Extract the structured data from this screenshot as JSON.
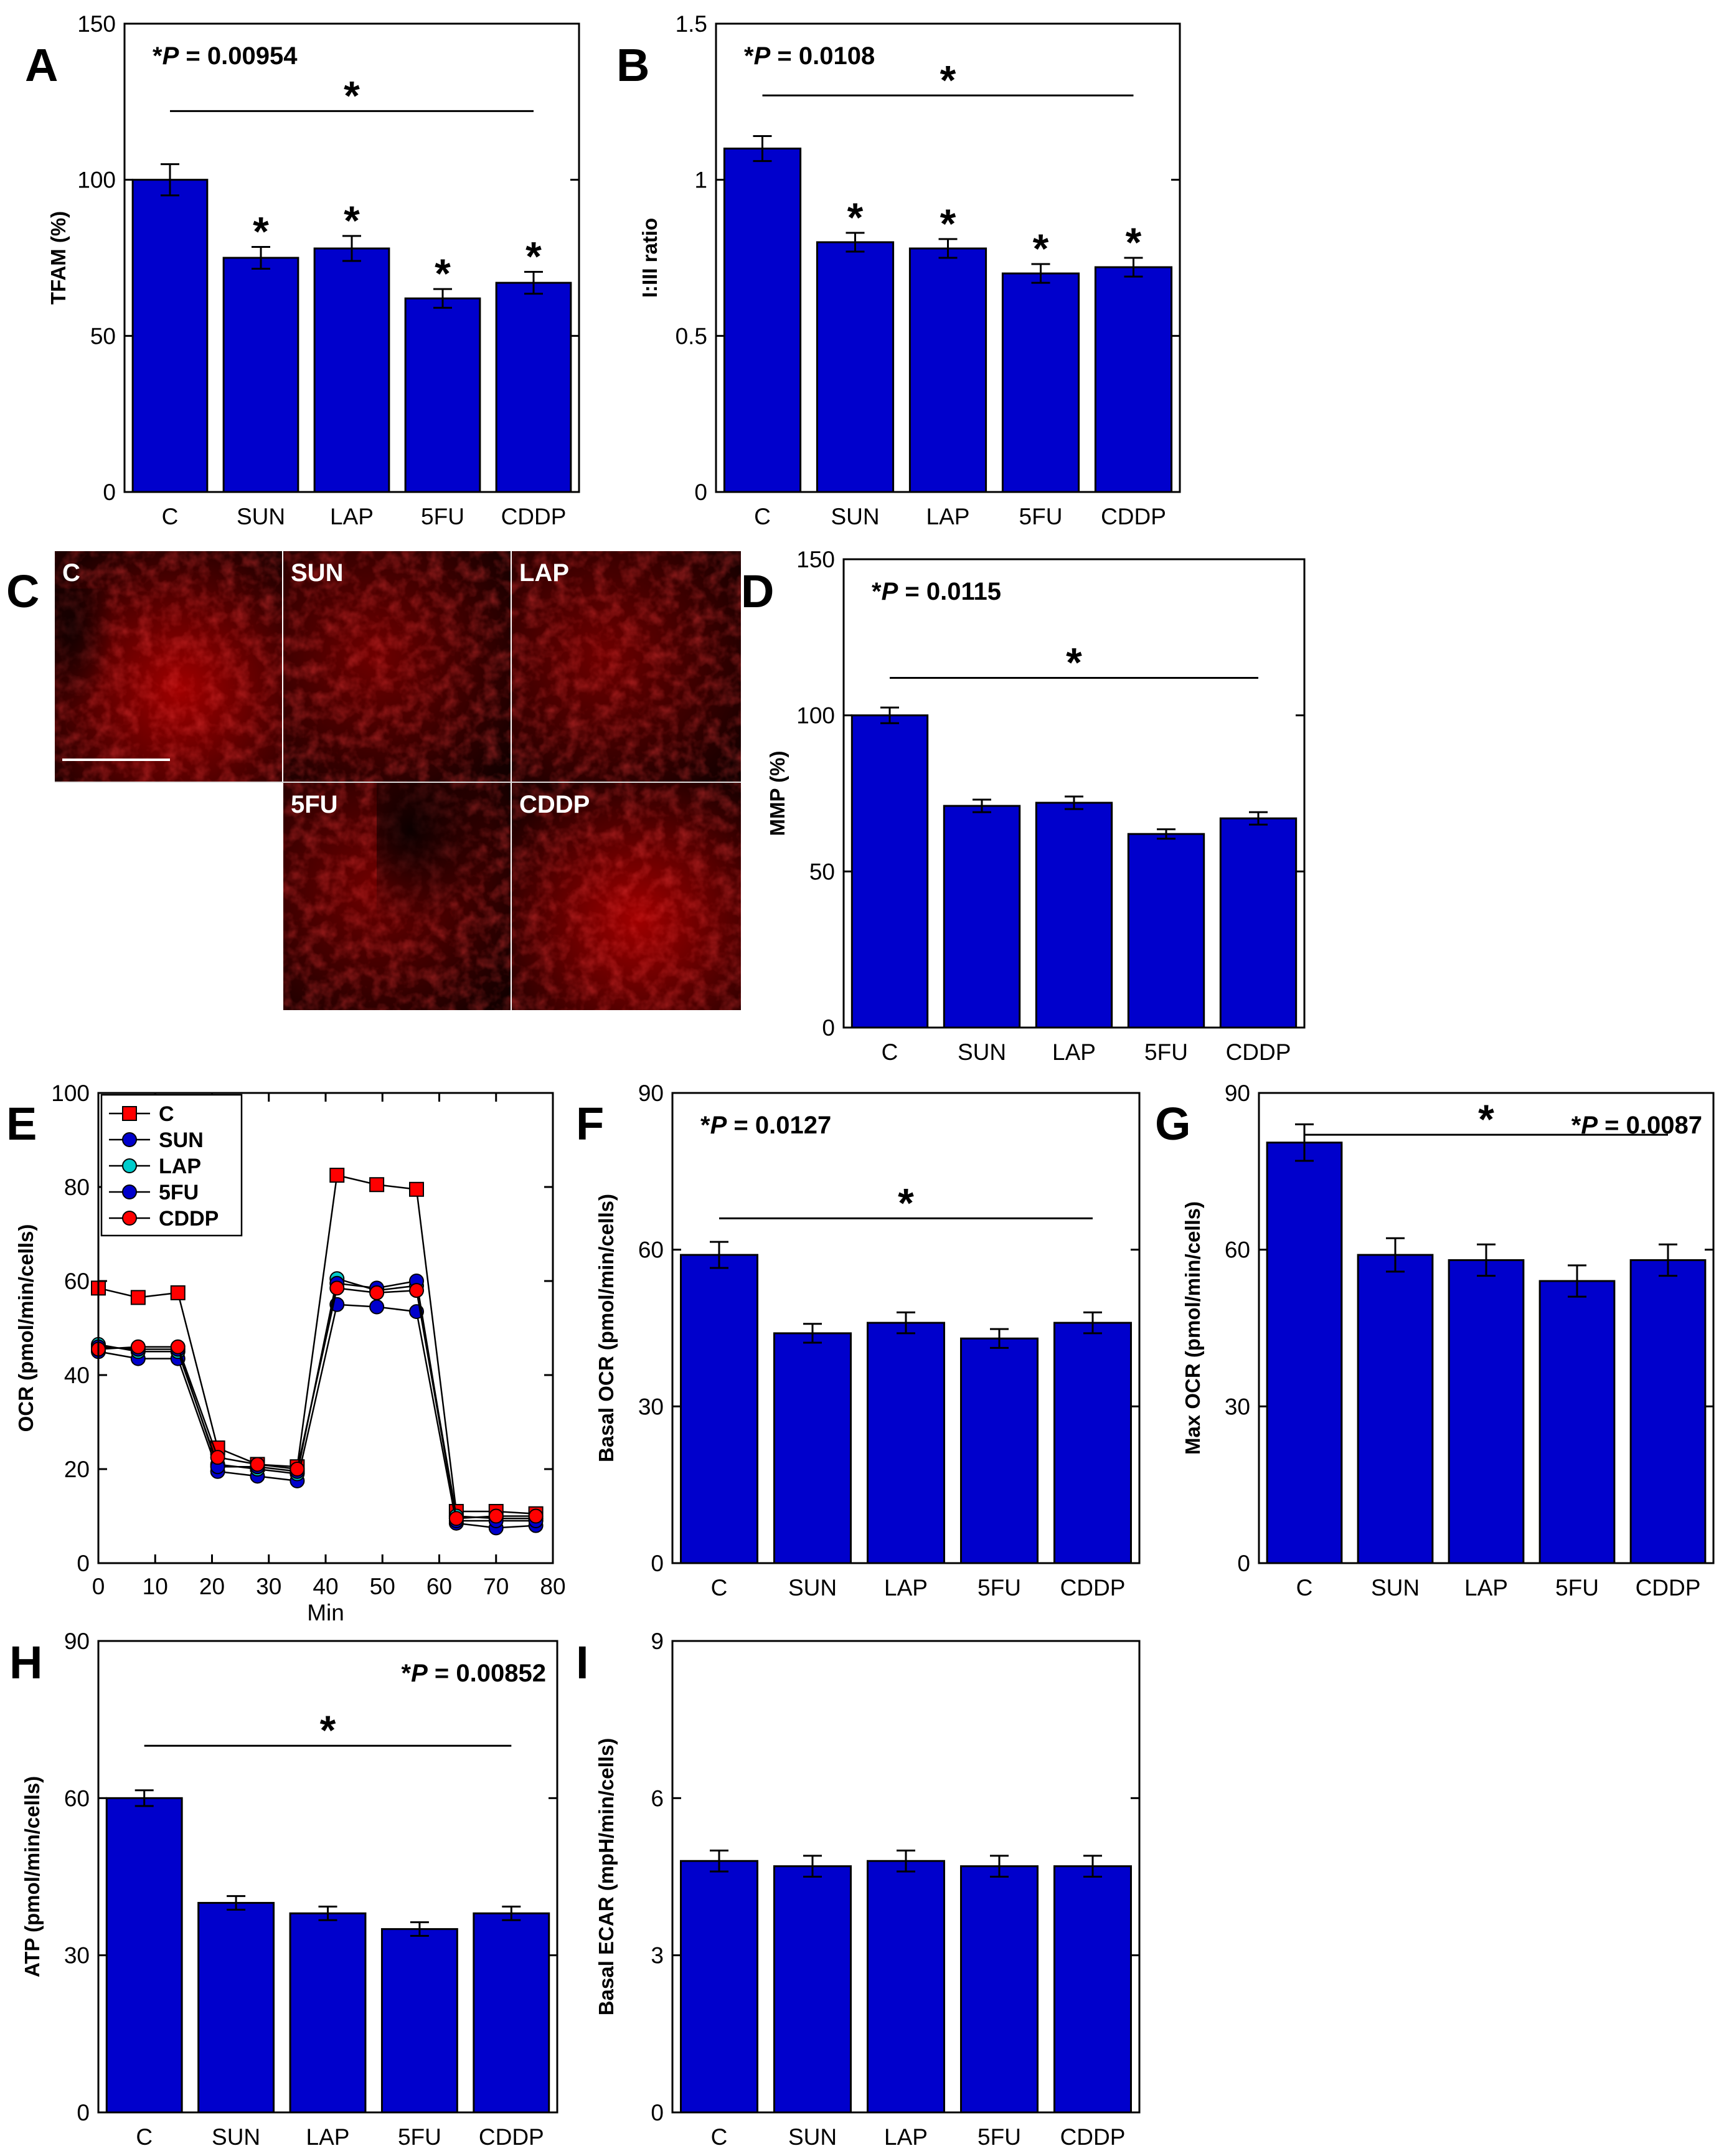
{
  "figure": {
    "groups": [
      "C",
      "SUN",
      "LAP",
      "5FU",
      "CDDP"
    ],
    "bar_color": "#0000cc",
    "line_colors": {
      "C": "#ff0000",
      "SUN": "#0000cc",
      "LAP": "#00cccc",
      "5FU": "#0000cc",
      "CDDP": "#ff0000"
    }
  },
  "chart_data": [
    {
      "panel": "A",
      "type": "bar",
      "title": "",
      "xlabel": "",
      "ylabel": "TFAM (%)",
      "categories": [
        "C",
        "SUN",
        "LAP",
        "5FU",
        "CDDP"
      ],
      "values": [
        100,
        75,
        78,
        62,
        67
      ],
      "errors": [
        5,
        3.5,
        4,
        3,
        3.5
      ],
      "ylim": [
        0,
        150
      ],
      "yticks": [
        0,
        50,
        100,
        150
      ],
      "ytick_labels": [
        "0",
        "50",
        "100",
        "150"
      ],
      "p_prefix": "*",
      "p_italic": "P",
      "p_rest": " = 0.00954",
      "bar_stars": [
        false,
        true,
        true,
        true,
        true
      ],
      "significance_bar": {
        "from": "C",
        "to": "CDDP",
        "label": "*",
        "y": 122
      }
    },
    {
      "panel": "B",
      "type": "bar",
      "title": "",
      "xlabel": "",
      "ylabel": "I:III ratio",
      "categories": [
        "C",
        "SUN",
        "LAP",
        "5FU",
        "CDDP"
      ],
      "values": [
        1.1,
        0.8,
        0.78,
        0.7,
        0.72
      ],
      "errors": [
        0.04,
        0.03,
        0.03,
        0.03,
        0.03
      ],
      "ylim": [
        0,
        1.5
      ],
      "yticks": [
        0,
        0.5,
        1,
        1.5
      ],
      "ytick_labels": [
        "0",
        "0.5",
        "1",
        "1.5"
      ],
      "p_prefix": "*",
      "p_italic": "P",
      "p_rest": " = 0.0108",
      "bar_stars": [
        false,
        true,
        true,
        true,
        true
      ],
      "significance_bar": {
        "from": "C",
        "to": "CDDP",
        "label": "*",
        "y": 1.27
      }
    },
    {
      "panel": "D",
      "type": "bar",
      "title": "",
      "xlabel": "",
      "ylabel": "MMP (%)",
      "categories": [
        "C",
        "SUN",
        "LAP",
        "5FU",
        "CDDP"
      ],
      "values": [
        100,
        71,
        72,
        62,
        67
      ],
      "errors": [
        2.5,
        2,
        2,
        1.5,
        2
      ],
      "ylim": [
        0,
        150
      ],
      "yticks": [
        0,
        50,
        100,
        150
      ],
      "ytick_labels": [
        "0",
        "50",
        "100",
        "150"
      ],
      "p_prefix": "*",
      "p_italic": "P",
      "p_rest": " = 0.0115",
      "bar_stars": [
        false,
        false,
        false,
        false,
        false
      ],
      "significance_bar": {
        "from": "C",
        "to": "CDDP",
        "label": "*",
        "y": 112
      }
    },
    {
      "panel": "E",
      "type": "line",
      "title": "",
      "xlabel": "Min",
      "ylabel": "OCR (pmol/min/cells)",
      "x": [
        0,
        7,
        14,
        21,
        28,
        35,
        42,
        49,
        56,
        63,
        70,
        77
      ],
      "xlim": [
        0,
        80
      ],
      "ylim": [
        0,
        100
      ],
      "xticks": [
        0,
        10,
        20,
        30,
        40,
        50,
        60,
        70,
        80
      ],
      "xtick_labels": [
        "0",
        "10",
        "20",
        "30",
        "40",
        "50",
        "60",
        "70",
        "80"
      ],
      "yticks": [
        0,
        20,
        40,
        60,
        80,
        100
      ],
      "ytick_labels": [
        "0",
        "20",
        "40",
        "60",
        "80",
        "100"
      ],
      "legend": "top-left",
      "series": [
        {
          "name": "C",
          "marker": "square",
          "color": "#ff0000",
          "values": [
            58.5,
            56.5,
            57.5,
            24.5,
            21,
            20.5,
            82.5,
            80.5,
            79.5,
            11,
            11,
            10.5
          ]
        },
        {
          "name": "SUN",
          "marker": "circle",
          "color": "#0000cc",
          "values": [
            45,
            43.5,
            43.5,
            19.5,
            18.5,
            17.5,
            55,
            54.5,
            53.5,
            8.5,
            7.5,
            8
          ]
        },
        {
          "name": "LAP",
          "marker": "circle",
          "color": "#00cccc",
          "values": [
            46.5,
            45,
            45,
            21,
            20,
            19,
            60.5,
            58,
            59,
            10,
            9.5,
            9.5
          ]
        },
        {
          "name": "5FU",
          "marker": "circle",
          "color": "#0000cc",
          "values": [
            46,
            45.5,
            45.5,
            20.5,
            20.5,
            19.5,
            59.5,
            58.5,
            60,
            9,
            9,
            9
          ]
        },
        {
          "name": "CDDP",
          "marker": "circle",
          "color": "#ff0000",
          "values": [
            45.5,
            46,
            46,
            22.5,
            21,
            20,
            58.5,
            57.5,
            58,
            9.5,
            10,
            10
          ]
        }
      ]
    },
    {
      "panel": "F",
      "type": "bar",
      "title": "",
      "xlabel": "",
      "ylabel": "Basal OCR (pmol/min/cells)",
      "categories": [
        "C",
        "SUN",
        "LAP",
        "5FU",
        "CDDP"
      ],
      "values": [
        59,
        44,
        46,
        43,
        46
      ],
      "errors": [
        2.5,
        1.8,
        2,
        1.8,
        2
      ],
      "ylim": [
        0,
        90
      ],
      "yticks": [
        0,
        30,
        60,
        90
      ],
      "ytick_labels": [
        "0",
        "30",
        "60",
        "90"
      ],
      "p_prefix": "*",
      "p_italic": "P",
      "p_rest": " = 0.0127",
      "bar_stars": [
        false,
        false,
        false,
        false,
        false
      ],
      "significance_bar": {
        "from": "C",
        "to": "CDDP",
        "label": "*",
        "y": 66
      }
    },
    {
      "panel": "G",
      "type": "bar",
      "title": "",
      "xlabel": "",
      "ylabel": "Max OCR (pmol/min/cells)",
      "categories": [
        "C",
        "SUN",
        "LAP",
        "5FU",
        "CDDP"
      ],
      "values": [
        80.5,
        59,
        58,
        54,
        58
      ],
      "errors": [
        3.5,
        3.2,
        3,
        3,
        3
      ],
      "ylim": [
        0,
        90
      ],
      "yticks": [
        0,
        30,
        60,
        90
      ],
      "ytick_labels": [
        "0",
        "30",
        "60",
        "90"
      ],
      "p_prefix": "*",
      "p_italic": "P",
      "p_rest": " = 0.0087",
      "bar_stars": [
        false,
        false,
        false,
        false,
        false
      ],
      "significance_bar": {
        "from": "C",
        "to": "CDDP",
        "label": "*",
        "y": 82
      }
    },
    {
      "panel": "H",
      "type": "bar",
      "title": "",
      "xlabel": "",
      "ylabel": "ATP (pmol/min/cells)",
      "categories": [
        "C",
        "SUN",
        "LAP",
        "5FU",
        "CDDP"
      ],
      "values": [
        60,
        40,
        38,
        35,
        38
      ],
      "errors": [
        1.5,
        1.3,
        1.3,
        1.3,
        1.3
      ],
      "ylim": [
        0,
        90
      ],
      "yticks": [
        0,
        30,
        60,
        90
      ],
      "ytick_labels": [
        "0",
        "30",
        "60",
        "90"
      ],
      "p_prefix": "*",
      "p_italic": "P",
      "p_rest": " = 0.00852",
      "bar_stars": [
        false,
        false,
        false,
        false,
        false
      ],
      "significance_bar": {
        "from": "C",
        "to": "CDDP",
        "label": "*",
        "y": 70
      }
    },
    {
      "panel": "I",
      "type": "bar",
      "title": "",
      "xlabel": "",
      "ylabel": "Basal ECAR (mpH/min/cells)",
      "categories": [
        "C",
        "SUN",
        "LAP",
        "5FU",
        "CDDP"
      ],
      "values": [
        4.8,
        4.7,
        4.8,
        4.7,
        4.7
      ],
      "errors": [
        0.2,
        0.2,
        0.2,
        0.2,
        0.2
      ],
      "ylim": [
        0,
        9
      ],
      "yticks": [
        0,
        3,
        6,
        9
      ],
      "ytick_labels": [
        "0",
        "3",
        "6",
        "9"
      ],
      "p_prefix": "",
      "p_italic": "",
      "p_rest": "",
      "bar_stars": [
        false,
        false,
        false,
        false,
        false
      ],
      "significance_bar": null
    }
  ],
  "micrographs": {
    "panel": "C",
    "tiles": [
      {
        "label": "C",
        "scale_bar": true
      },
      {
        "label": "SUN",
        "scale_bar": false
      },
      {
        "label": "LAP",
        "scale_bar": false
      },
      {
        "label": "5FU",
        "scale_bar": false
      },
      {
        "label": "CDDP",
        "scale_bar": false
      }
    ]
  }
}
